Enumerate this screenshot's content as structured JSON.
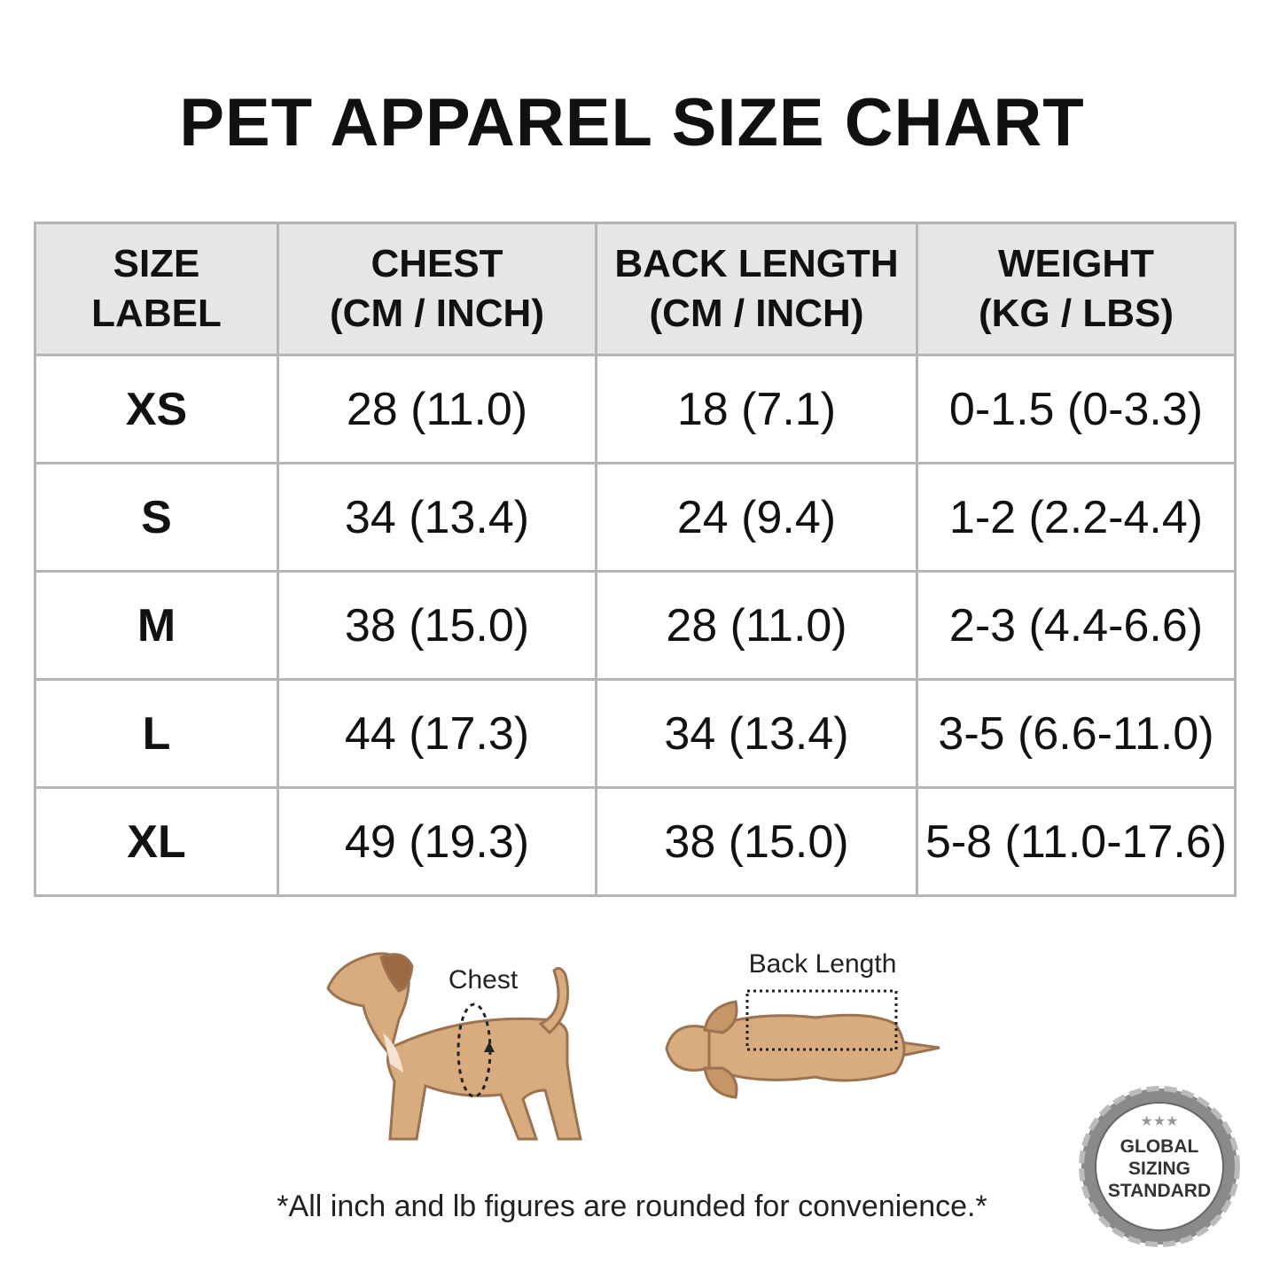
{
  "header": {
    "title": "PET APPAREL SIZE CHART"
  },
  "table": {
    "headers": [
      [
        "SIZE",
        "LABEL"
      ],
      [
        "CHEST",
        "(CM / INCH)"
      ],
      [
        "BACK LENGTH",
        "(CM / INCH)"
      ],
      [
        "WEIGHT",
        "(KG / LBS)"
      ]
    ],
    "rows": [
      [
        "XS",
        "28 (11.0)",
        "18 (7.1)",
        "0-1.5 (0-3.3)"
      ],
      [
        "S",
        "34 (13.4)",
        "24 (9.4)",
        "1-2 (2.2-4.4)"
      ],
      [
        "M",
        "38 (15.0)",
        "28 (11.0)",
        "2-3 (4.4-6.6)"
      ],
      [
        "L",
        "44 (17.3)",
        "34 (13.4)",
        "3-5 (6.6-11.0)"
      ],
      [
        "XL",
        "49 (19.3)",
        "38 (15.0)",
        "5-8 (11.0-17.6)"
      ]
    ]
  },
  "diagrams": {
    "chest_label": "Chest",
    "back_label": "Back Length"
  },
  "footnote": "*All inch and lb figures are rounded for convenience.*",
  "badge": {
    "lines": [
      "GLOBAL",
      "SIZING",
      "STANDARD"
    ]
  }
}
